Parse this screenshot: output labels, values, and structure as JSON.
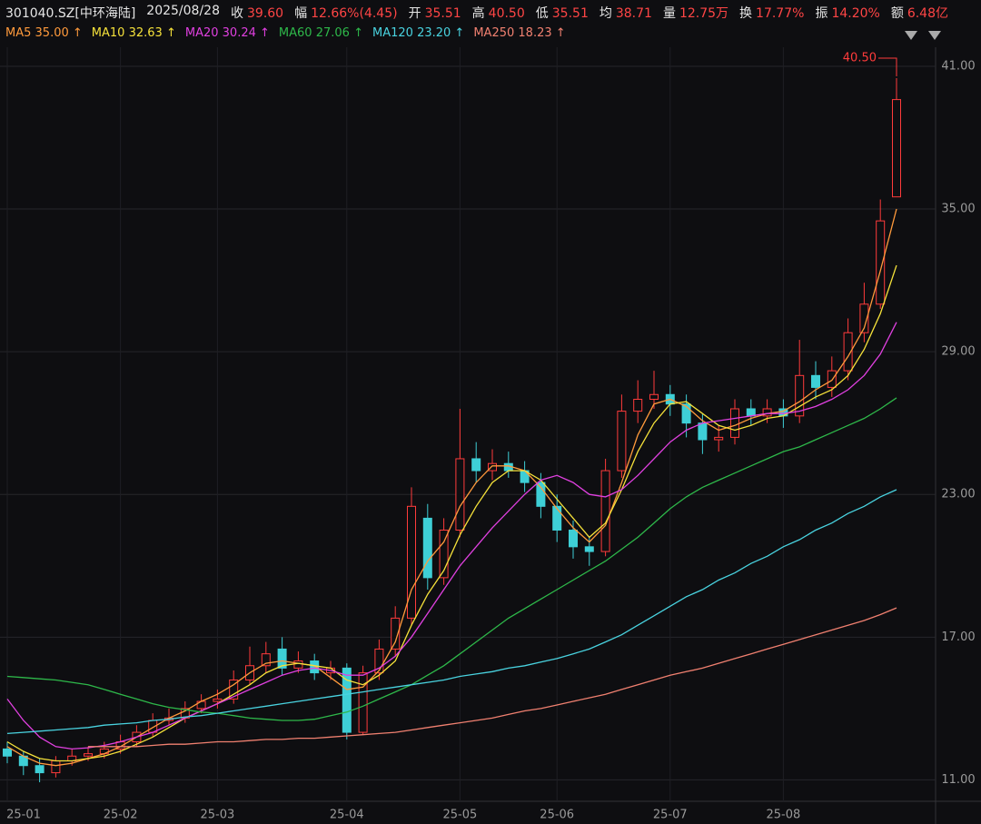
{
  "header": {
    "symbol": "301040.SZ[中环海陆]",
    "date": "2025/08/28",
    "items": [
      {
        "label": "收",
        "value": "39.60"
      },
      {
        "label": "幅",
        "value": "12.66%(4.45)"
      },
      {
        "label": "开",
        "value": "35.51"
      },
      {
        "label": "高",
        "value": "40.50"
      },
      {
        "label": "低",
        "value": "35.51"
      },
      {
        "label": "均",
        "value": "38.71"
      },
      {
        "label": "量",
        "value": "12.75万"
      },
      {
        "label": "换",
        "value": "17.77%"
      },
      {
        "label": "振",
        "value": "14.20%"
      },
      {
        "label": "额",
        "value": "6.48亿"
      }
    ]
  },
  "chart_data": {
    "type": "candlestick",
    "categories": [
      "25-01",
      null,
      null,
      null,
      null,
      null,
      null,
      "25-02",
      null,
      null,
      null,
      null,
      null,
      "25-03",
      null,
      null,
      null,
      null,
      null,
      null,
      null,
      "25-04",
      null,
      null,
      null,
      null,
      null,
      null,
      "25-05",
      null,
      null,
      null,
      null,
      null,
      "25-06",
      null,
      null,
      null,
      null,
      null,
      null,
      "25-07",
      null,
      null,
      null,
      null,
      null,
      null,
      "25-08",
      null,
      null,
      null,
      null,
      null,
      null,
      null
    ],
    "open": [
      12.3,
      12.0,
      11.6,
      11.3,
      11.8,
      12.0,
      12.1,
      12.3,
      12.6,
      13.0,
      13.5,
      13.6,
      14.0,
      14.3,
      14.4,
      15.2,
      15.8,
      16.5,
      15.7,
      16.0,
      15.5,
      15.7,
      13.0,
      15.5,
      16.5,
      17.8,
      22.0,
      19.5,
      21.5,
      24.5,
      24.0,
      24.3,
      24.0,
      23.5,
      22.5,
      21.5,
      20.8,
      20.6,
      24.0,
      26.5,
      27.0,
      27.2,
      26.8,
      26.0,
      25.3,
      25.4,
      26.6,
      26.3,
      26.6,
      26.3,
      28.0,
      27.5,
      28.2,
      29.8,
      31.0,
      35.51
    ],
    "high": [
      12.6,
      12.2,
      11.9,
      12.0,
      12.3,
      12.4,
      12.6,
      12.9,
      13.3,
      13.8,
      14.0,
      14.3,
      14.6,
      14.8,
      15.6,
      16.6,
      16.8,
      17.0,
      16.4,
      16.3,
      16.0,
      15.9,
      15.8,
      16.9,
      18.3,
      23.3,
      22.6,
      22.0,
      26.6,
      25.2,
      24.9,
      24.8,
      24.4,
      23.9,
      23.0,
      21.9,
      21.2,
      24.5,
      27.2,
      27.8,
      28.2,
      27.6,
      27.2,
      26.4,
      25.9,
      27.0,
      27.0,
      27.0,
      27.0,
      29.5,
      28.6,
      28.8,
      30.4,
      31.9,
      35.4,
      40.5
    ],
    "low": [
      11.7,
      11.2,
      10.9,
      11.1,
      11.6,
      11.8,
      11.9,
      12.1,
      12.4,
      12.8,
      13.3,
      13.4,
      13.8,
      14.0,
      14.2,
      15.0,
      15.5,
      15.4,
      15.5,
      15.2,
      15.2,
      12.7,
      12.9,
      15.2,
      16.2,
      17.5,
      19.0,
      19.2,
      21.2,
      23.5,
      23.6,
      23.7,
      23.1,
      22.0,
      21.0,
      20.3,
      20.0,
      20.4,
      23.7,
      26.0,
      26.6,
      26.3,
      25.4,
      24.7,
      24.8,
      25.1,
      25.9,
      26.0,
      25.8,
      26.0,
      27.0,
      27.1,
      27.8,
      29.4,
      30.8,
      35.51
    ],
    "close": [
      12.0,
      11.6,
      11.3,
      11.8,
      12.0,
      12.1,
      12.3,
      12.6,
      13.0,
      13.5,
      13.6,
      14.0,
      14.3,
      14.4,
      15.2,
      15.8,
      16.3,
      15.7,
      16.0,
      15.5,
      15.7,
      13.0,
      15.5,
      16.5,
      17.8,
      22.5,
      19.5,
      21.5,
      24.5,
      24.0,
      24.3,
      24.0,
      23.5,
      22.5,
      21.5,
      20.8,
      20.6,
      24.0,
      26.5,
      27.0,
      27.2,
      26.8,
      26.0,
      25.3,
      25.4,
      26.6,
      26.3,
      26.6,
      26.3,
      28.0,
      27.5,
      28.2,
      29.8,
      31.0,
      34.5,
      39.6
    ],
    "up_color": "#ff3b3b",
    "down_color": "#3ecfd6",
    "max_label": "40.50",
    "series": [
      {
        "name": "MA5",
        "legend_value": "35.00",
        "trend_mark": "↑",
        "color": "#ff9a3c",
        "values": [
          12.4,
          12.0,
          11.7,
          11.6,
          11.7,
          11.9,
          12.1,
          12.4,
          12.8,
          13.2,
          13.6,
          13.9,
          14.3,
          14.6,
          15.0,
          15.5,
          15.9,
          16.0,
          15.9,
          15.8,
          15.3,
          14.8,
          14.9,
          15.6,
          16.8,
          19.0,
          20.2,
          21.0,
          22.5,
          23.5,
          24.2,
          24.2,
          24.0,
          23.3,
          22.4,
          21.6,
          21.0,
          21.7,
          23.5,
          25.5,
          26.8,
          27.0,
          26.7,
          26.1,
          25.7,
          25.9,
          26.2,
          26.4,
          26.5,
          26.9,
          27.4,
          27.8,
          28.8,
          30.0,
          32.4,
          35.0
        ]
      },
      {
        "name": "MA10",
        "legend_value": "32.63",
        "trend_mark": "↑",
        "color": "#f5e13a",
        "values": [
          12.6,
          12.2,
          11.9,
          11.8,
          11.8,
          11.9,
          12.0,
          12.2,
          12.5,
          12.8,
          13.2,
          13.6,
          13.9,
          14.2,
          14.6,
          15.0,
          15.5,
          15.8,
          15.9,
          15.8,
          15.7,
          15.2,
          15.0,
          15.4,
          16.0,
          17.5,
          18.8,
          19.8,
          21.3,
          22.5,
          23.5,
          24.0,
          24.0,
          23.6,
          22.8,
          22.0,
          21.2,
          21.8,
          23.2,
          24.8,
          26.0,
          26.8,
          26.9,
          26.4,
          25.9,
          25.7,
          25.9,
          26.2,
          26.3,
          26.7,
          27.1,
          27.4,
          28.0,
          29.1,
          30.6,
          32.63
        ]
      },
      {
        "name": "MA20",
        "legend_value": "30.24",
        "trend_mark": "↑",
        "color": "#e040e0",
        "values": [
          14.4,
          13.5,
          12.8,
          12.4,
          12.3,
          12.35,
          12.45,
          12.6,
          12.8,
          13.0,
          13.3,
          13.6,
          13.9,
          14.2,
          14.5,
          14.8,
          15.1,
          15.4,
          15.6,
          15.7,
          15.6,
          15.4,
          15.4,
          15.7,
          16.2,
          17.0,
          18.0,
          19.0,
          20.0,
          20.8,
          21.6,
          22.3,
          23.0,
          23.6,
          23.8,
          23.5,
          23.0,
          22.9,
          23.2,
          23.8,
          24.5,
          25.2,
          25.7,
          26.0,
          26.1,
          26.2,
          26.3,
          26.4,
          26.4,
          26.5,
          26.7,
          27.0,
          27.4,
          28.0,
          28.9,
          30.24
        ]
      },
      {
        "name": "MA60",
        "legend_value": "27.06",
        "trend_mark": "↑",
        "color": "#2eb84a",
        "values": [
          15.35,
          15.3,
          15.25,
          15.2,
          15.1,
          15.0,
          14.8,
          14.6,
          14.4,
          14.2,
          14.05,
          13.95,
          13.85,
          13.8,
          13.7,
          13.6,
          13.55,
          13.5,
          13.5,
          13.55,
          13.7,
          13.85,
          14.1,
          14.4,
          14.7,
          15.0,
          15.4,
          15.8,
          16.3,
          16.8,
          17.3,
          17.8,
          18.2,
          18.6,
          19.0,
          19.4,
          19.8,
          20.2,
          20.7,
          21.2,
          21.8,
          22.4,
          22.9,
          23.3,
          23.6,
          23.9,
          24.2,
          24.5,
          24.8,
          25.0,
          25.3,
          25.6,
          25.9,
          26.2,
          26.6,
          27.06
        ]
      },
      {
        "name": "MA120",
        "legend_value": "23.20",
        "trend_mark": "↑",
        "color": "#49d3e0",
        "values": [
          12.95,
          13.0,
          13.05,
          13.1,
          13.15,
          13.2,
          13.3,
          13.35,
          13.4,
          13.5,
          13.55,
          13.65,
          13.7,
          13.8,
          13.9,
          14.0,
          14.1,
          14.2,
          14.3,
          14.4,
          14.5,
          14.6,
          14.7,
          14.8,
          14.9,
          15.0,
          15.1,
          15.2,
          15.35,
          15.45,
          15.55,
          15.7,
          15.8,
          15.95,
          16.1,
          16.3,
          16.5,
          16.8,
          17.1,
          17.5,
          17.9,
          18.3,
          18.7,
          19.0,
          19.4,
          19.7,
          20.1,
          20.4,
          20.8,
          21.1,
          21.5,
          21.8,
          22.2,
          22.5,
          22.9,
          23.2
        ]
      },
      {
        "name": "MA250",
        "legend_value": "18.23",
        "trend_mark": "↑",
        "color": "#f08070",
        "values": [
          null,
          null,
          null,
          null,
          null,
          12.4,
          12.4,
          12.4,
          12.4,
          12.45,
          12.5,
          12.5,
          12.55,
          12.6,
          12.6,
          12.65,
          12.7,
          12.7,
          12.75,
          12.75,
          12.8,
          12.85,
          12.9,
          12.95,
          13.0,
          13.1,
          13.2,
          13.3,
          13.4,
          13.5,
          13.6,
          13.75,
          13.9,
          14.0,
          14.15,
          14.3,
          14.45,
          14.6,
          14.8,
          15.0,
          15.2,
          15.4,
          15.55,
          15.7,
          15.9,
          16.1,
          16.3,
          16.5,
          16.7,
          16.9,
          17.1,
          17.3,
          17.5,
          17.7,
          17.95,
          18.23
        ]
      }
    ],
    "ylim": [
      10.1,
      41.8
    ],
    "yticks": [
      {
        "value": 11,
        "label": "11.00"
      },
      {
        "value": 17,
        "label": "17.00"
      },
      {
        "value": 23,
        "label": "23.00"
      },
      {
        "value": 29,
        "label": "29.00"
      },
      {
        "value": 35,
        "label": "35.00"
      },
      {
        "value": 41,
        "label": "41.00"
      }
    ],
    "grid": true
  }
}
